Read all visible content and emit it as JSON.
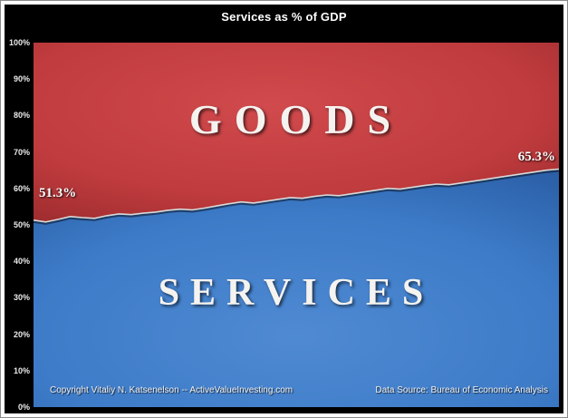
{
  "title": "Services as % of GDP",
  "chart_data": {
    "type": "area",
    "title": "Services as % of GDP",
    "ylabel": "",
    "xlabel": "",
    "ylim": [
      0,
      100
    ],
    "yticks": [
      "100%",
      "90%",
      "80%",
      "70%",
      "60%",
      "50%",
      "40%",
      "30%",
      "20%",
      "10%",
      "0%"
    ],
    "grid": false,
    "legend_position": "none",
    "stacked_to": 100,
    "series": [
      {
        "name": "SERVICES",
        "color": "#3d7bc8",
        "values": [
          51.3,
          50.8,
          51.5,
          52.3,
          52.0,
          51.8,
          52.5,
          53.0,
          52.8,
          53.2,
          53.5,
          54.0,
          54.3,
          54.1,
          54.6,
          55.2,
          55.8,
          56.3,
          56.0,
          56.5,
          57.0,
          57.5,
          57.3,
          57.8,
          58.2,
          58.0,
          58.5,
          59.0,
          59.5,
          60.0,
          59.8,
          60.3,
          60.8,
          61.2,
          61.0,
          61.5,
          62.0,
          62.5,
          63.0,
          63.5,
          64.0,
          64.5,
          65.0,
          65.3
        ]
      },
      {
        "name": "GOODS",
        "color": "#bf3b3d",
        "note": "complement of SERVICES to 100%"
      }
    ],
    "annotations": [
      {
        "text": "51.3%",
        "position": "start"
      },
      {
        "text": "65.3%",
        "position": "end"
      }
    ],
    "colors": {
      "background": "#000000",
      "goods_fill": "#bf3b3d",
      "services_fill": "#3d7bc8",
      "boundary_line": "#d9d9d9"
    }
  },
  "footer": {
    "left": "Copyright Vitaliy N. Katsenelson -- ActiveValueInvesting.com",
    "right": "Data Source: Bureau of Economic Analysis"
  }
}
